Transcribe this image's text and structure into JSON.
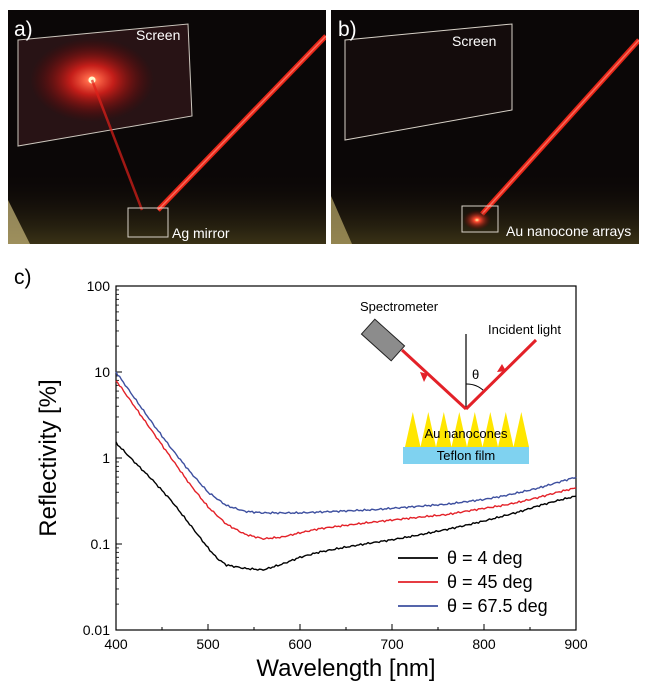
{
  "photos": [
    {
      "label": "a)",
      "screen_label": "Screen",
      "sample_label": "Ag mirror"
    },
    {
      "label": "b)",
      "screen_label": "Screen",
      "sample_label": "Au nanocone arrays"
    }
  ],
  "chart_label": "c)",
  "chart_data": {
    "type": "line",
    "title": "",
    "xlabel": "Wavelength [nm]",
    "ylabel": "Reflectivity [%]",
    "xlim": [
      400,
      900
    ],
    "ylim": [
      0.01,
      100
    ],
    "yscale": "log",
    "xticks": [
      "400",
      "500",
      "600",
      "700",
      "800",
      "900"
    ],
    "yticks": [
      "0.01",
      "0.1",
      "1",
      "10",
      "100"
    ],
    "grid": false,
    "legend_position": "bottom-right",
    "series": [
      {
        "name": "θ = 4 deg",
        "color": "#000000",
        "x": [
          400,
          420,
          440,
          460,
          480,
          500,
          510,
          520,
          540,
          560,
          580,
          600,
          620,
          640,
          660,
          680,
          700,
          720,
          740,
          760,
          780,
          800,
          820,
          840,
          860,
          880,
          900
        ],
        "y": [
          1.5,
          0.9,
          0.55,
          0.32,
          0.17,
          0.09,
          0.068,
          0.057,
          0.052,
          0.05,
          0.058,
          0.07,
          0.08,
          0.088,
          0.096,
          0.104,
          0.112,
          0.122,
          0.134,
          0.148,
          0.165,
          0.185,
          0.21,
          0.24,
          0.28,
          0.32,
          0.36
        ]
      },
      {
        "name": "θ = 45 deg",
        "color": "#e32128",
        "x": [
          400,
          420,
          440,
          460,
          480,
          500,
          520,
          540,
          560,
          580,
          600,
          620,
          640,
          660,
          680,
          700,
          720,
          740,
          760,
          780,
          800,
          820,
          840,
          860,
          880,
          900
        ],
        "y": [
          8.0,
          4.0,
          2.0,
          1.0,
          0.5,
          0.27,
          0.17,
          0.13,
          0.115,
          0.12,
          0.135,
          0.15,
          0.16,
          0.17,
          0.18,
          0.19,
          0.2,
          0.21,
          0.22,
          0.24,
          0.26,
          0.28,
          0.31,
          0.35,
          0.4,
          0.45
        ]
      },
      {
        "name": "θ = 67.5 deg",
        "color": "#3d4f9f",
        "x": [
          400,
          420,
          440,
          460,
          480,
          500,
          520,
          540,
          560,
          580,
          600,
          620,
          640,
          660,
          680,
          700,
          720,
          740,
          760,
          780,
          800,
          820,
          840,
          860,
          880,
          900
        ],
        "y": [
          10.0,
          5.0,
          2.5,
          1.3,
          0.7,
          0.4,
          0.28,
          0.24,
          0.23,
          0.23,
          0.23,
          0.235,
          0.24,
          0.245,
          0.25,
          0.26,
          0.27,
          0.28,
          0.29,
          0.31,
          0.33,
          0.36,
          0.4,
          0.45,
          0.52,
          0.6
        ]
      }
    ],
    "inset": {
      "spectrometer": "Spectrometer",
      "incident": "Incident light",
      "angle": "θ",
      "nanocones": "Au nanocones",
      "film": "Teflon film"
    }
  },
  "colors": {
    "laser": "#ff2a1a",
    "photo_bg": "#0a0606",
    "nanocone": "#ffe600",
    "teflon": "#7fd2f0",
    "inset_ray": "#e32128",
    "spectrometer": "#8c8c8c"
  }
}
